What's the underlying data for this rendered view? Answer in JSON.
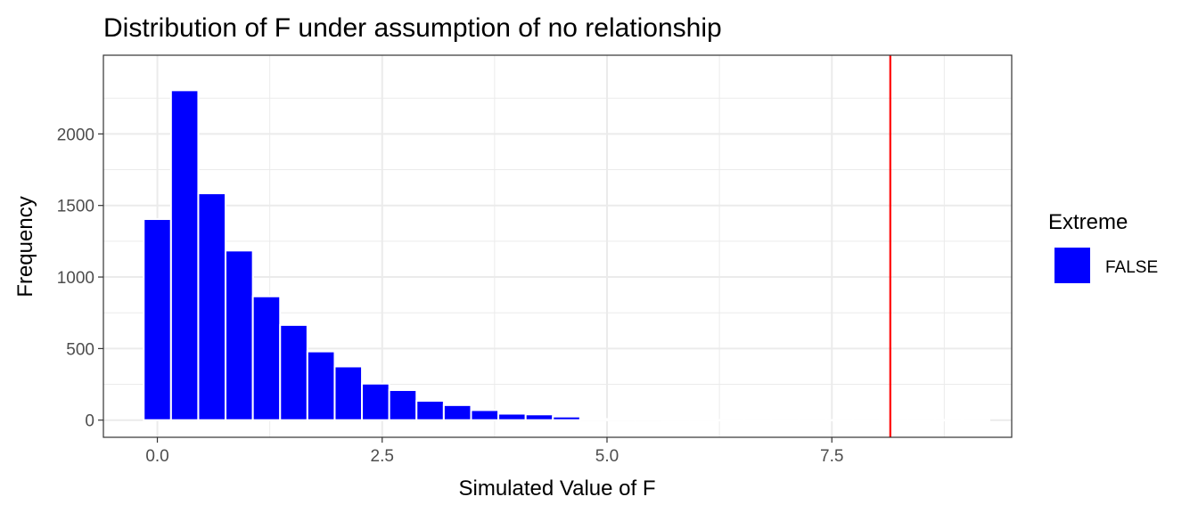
{
  "chart_data": {
    "type": "bar",
    "title": "Distribution of F under assumption of no relationship",
    "xlabel": "Simulated Value of F",
    "ylabel": "Frequency",
    "xlim": [
      -0.6,
      9.5
    ],
    "ylim": [
      -120,
      2550
    ],
    "x_ticks": [
      {
        "value": 0,
        "label": "0.0"
      },
      {
        "value": 2.5,
        "label": "2.5"
      },
      {
        "value": 5,
        "label": "5.0"
      },
      {
        "value": 7.5,
        "label": "7.5"
      }
    ],
    "y_ticks": [
      {
        "value": 0,
        "label": "0"
      },
      {
        "value": 500,
        "label": "500"
      },
      {
        "value": 1000,
        "label": "1000"
      },
      {
        "value": 1500,
        "label": "1500"
      },
      {
        "value": 2000,
        "label": "2000"
      }
    ],
    "grid": true,
    "bin_width": 0.3033,
    "bin_centers": [
      0.0,
      0.3033,
      0.6067,
      0.91,
      1.2133,
      1.5167,
      1.82,
      2.1233,
      2.4267,
      2.73,
      3.0333,
      3.3367,
      3.64,
      3.9433,
      4.2467,
      4.55,
      4.8533,
      5.1567,
      5.46,
      5.7633,
      6.0667,
      6.37,
      6.6733,
      6.9767,
      7.28,
      7.5833,
      7.8867,
      8.19,
      8.4933,
      8.7967,
      9.1
    ],
    "values": [
      1405,
      2305,
      1585,
      1185,
      865,
      665,
      480,
      375,
      255,
      210,
      135,
      105,
      70,
      45,
      40,
      25,
      8,
      4,
      3,
      2,
      2,
      1,
      1,
      1,
      1,
      1,
      1,
      1,
      1,
      1,
      1
    ],
    "series": [
      {
        "name": "FALSE",
        "color": "#0000ff"
      }
    ],
    "legend": {
      "title": "Extreme",
      "position": "right"
    },
    "reference_line": {
      "x": 8.15,
      "color": "#ff0000"
    }
  }
}
